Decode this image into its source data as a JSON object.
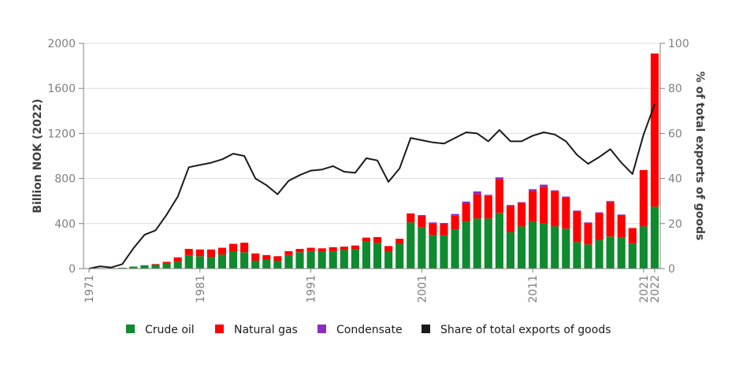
{
  "chart_data": {
    "type": "bar",
    "stacked": true,
    "grid": true,
    "legend_position": "bottom",
    "x_tick_labels": [
      "1971",
      "1981",
      "1991",
      "2001",
      "2011",
      "2021",
      "2022"
    ],
    "y_left": {
      "label": "Billion NOK (2022)",
      "ylim": [
        0,
        2000
      ],
      "ticks": [
        0,
        400,
        800,
        1200,
        1600,
        2000
      ]
    },
    "y_right": {
      "label": "% of total exports of goods",
      "ylim": [
        0,
        100
      ],
      "ticks": [
        0,
        20,
        40,
        60,
        80,
        100
      ]
    },
    "years": [
      1971,
      1972,
      1973,
      1974,
      1975,
      1976,
      1977,
      1978,
      1979,
      1980,
      1981,
      1982,
      1983,
      1984,
      1985,
      1986,
      1987,
      1988,
      1989,
      1990,
      1991,
      1992,
      1993,
      1994,
      1995,
      1996,
      1997,
      1998,
      1999,
      2000,
      2001,
      2002,
      2003,
      2004,
      2005,
      2006,
      2007,
      2008,
      2009,
      2010,
      2011,
      2012,
      2013,
      2014,
      2015,
      2016,
      2017,
      2018,
      2019,
      2020,
      2021,
      2022
    ],
    "series": [
      {
        "name": "Crude oil",
        "color": "#0f8a2e",
        "axis": "left",
        "values": [
          2,
          4,
          5,
          8,
          18,
          30,
          35,
          45,
          60,
          120,
          110,
          105,
          125,
          150,
          145,
          70,
          80,
          70,
          120,
          145,
          155,
          150,
          155,
          165,
          175,
          240,
          230,
          150,
          220,
          410,
          370,
          300,
          295,
          350,
          420,
          445,
          445,
          495,
          325,
          375,
          415,
          400,
          375,
          355,
          235,
          215,
          255,
          285,
          275,
          225,
          375,
          550
        ]
      },
      {
        "name": "Natural gas",
        "color": "#ff0000",
        "axis": "left",
        "values": [
          0,
          0,
          0,
          0,
          0,
          0,
          5,
          15,
          40,
          55,
          60,
          65,
          60,
          70,
          85,
          65,
          40,
          40,
          35,
          30,
          30,
          30,
          35,
          30,
          30,
          35,
          50,
          50,
          45,
          80,
          95,
          100,
          100,
          120,
          160,
          215,
          200,
          300,
          230,
          210,
          275,
          325,
          315,
          275,
          275,
          190,
          240,
          305,
          200,
          135,
          500,
          1360
        ]
      },
      {
        "name": "Condensate",
        "color": "#8b2cc0",
        "axis": "left",
        "values": [
          0,
          0,
          0,
          0,
          0,
          0,
          0,
          0,
          0,
          0,
          0,
          0,
          0,
          0,
          0,
          0,
          0,
          0,
          0,
          0,
          0,
          0,
          0,
          0,
          0,
          0,
          0,
          0,
          0,
          0,
          10,
          10,
          10,
          15,
          15,
          25,
          10,
          15,
          10,
          5,
          15,
          20,
          5,
          10,
          5,
          5,
          5,
          10,
          5,
          0,
          0,
          0
        ]
      },
      {
        "name": "Share of total exports of goods",
        "color": "#1a1a1a",
        "axis": "right",
        "type": "line",
        "values": [
          0,
          1,
          0.5,
          2,
          9,
          15,
          17,
          24,
          32,
          45,
          46,
          47,
          48.5,
          51,
          50,
          40,
          37,
          33,
          39,
          41.5,
          43.5,
          44,
          45.5,
          43,
          42.5,
          49,
          48,
          38.5,
          44.5,
          58,
          57,
          56,
          55.5,
          58,
          60.5,
          60,
          56.5,
          61.5,
          56.5,
          56.5,
          59,
          60.5,
          59.5,
          56.5,
          50.5,
          46.5,
          49.5,
          53,
          47,
          42,
          59.5,
          73
        ]
      }
    ]
  }
}
